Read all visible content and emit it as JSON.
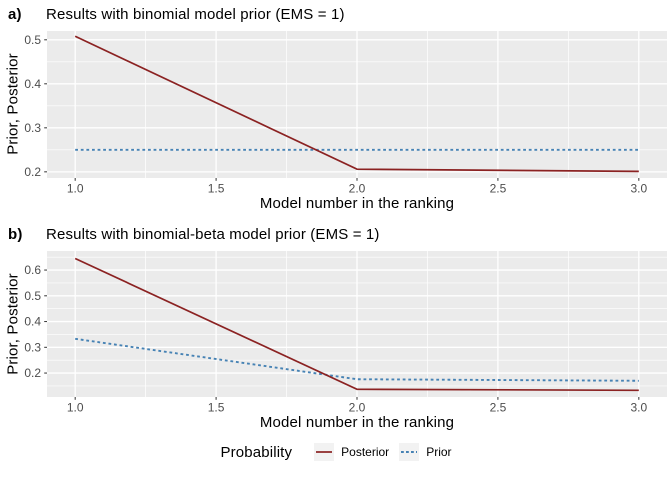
{
  "figure": {
    "legend": {
      "title": "Probability",
      "items": [
        {
          "label": "Posterior",
          "line_style": "solid",
          "color": "#8B2222"
        },
        {
          "label": "Prior",
          "line_style": "dashed",
          "color": "#4682B4"
        }
      ]
    }
  },
  "style": {
    "panel_bg": "#EBEBEB",
    "grid_color": "#FFFFFF",
    "tick_color": "#333333",
    "tick_label_color": "#4D4D4D",
    "posterior_color": "#8B2222",
    "prior_color": "#4682B4",
    "legend_key_bg": "#F2F2F2",
    "page_bg": "#FFFFFF"
  },
  "chart_data": [
    {
      "type": "line",
      "panel_label": "a)",
      "title": "Results with binomial model prior (EMS = 1)",
      "xlabel": "Model number in the ranking",
      "ylabel": "Prior, Posterior",
      "x": [
        1,
        2,
        3
      ],
      "series": [
        {
          "name": "Posterior",
          "values": [
            0.508,
            0.206,
            0.201
          ],
          "color": "#8B2222",
          "style": "solid"
        },
        {
          "name": "Prior",
          "values": [
            0.25,
            0.25,
            0.25
          ],
          "color": "#4682B4",
          "style": "dashed"
        }
      ],
      "xlim": [
        0.9,
        3.1
      ],
      "ylim": [
        0.186,
        0.52
      ],
      "xticks": [
        1.0,
        1.5,
        2.0,
        2.5,
        3.0
      ],
      "yticks": [
        0.2,
        0.3,
        0.4,
        0.5
      ],
      "x_minor_ticks": [
        1.25,
        1.75,
        2.25,
        2.75
      ],
      "y_minor_ticks": [
        0.25,
        0.35,
        0.45
      ],
      "grid": "major+minor",
      "legend_position": "bottom"
    },
    {
      "type": "line",
      "panel_label": "b)",
      "title": "Results with binomial-beta model prior (EMS = 1)",
      "xlabel": "Model number in the ranking",
      "ylabel": "Prior, Posterior",
      "x": [
        1,
        2,
        3
      ],
      "series": [
        {
          "name": "Posterior",
          "values": [
            0.645,
            0.137,
            0.133
          ],
          "color": "#8B2222",
          "style": "solid"
        },
        {
          "name": "Prior",
          "values": [
            0.333,
            0.176,
            0.17
          ],
          "color": "#4682B4",
          "style": "dashed"
        }
      ],
      "xlim": [
        0.9,
        3.1
      ],
      "ylim": [
        0.107,
        0.674
      ],
      "xticks": [
        1.0,
        1.5,
        2.0,
        2.5,
        3.0
      ],
      "yticks": [
        0.2,
        0.3,
        0.4,
        0.5,
        0.6
      ],
      "x_minor_ticks": [
        1.25,
        1.75,
        2.25,
        2.75
      ],
      "y_minor_ticks": [
        0.15,
        0.25,
        0.35,
        0.45,
        0.55,
        0.65
      ],
      "grid": "major+minor",
      "legend_position": "bottom"
    }
  ]
}
